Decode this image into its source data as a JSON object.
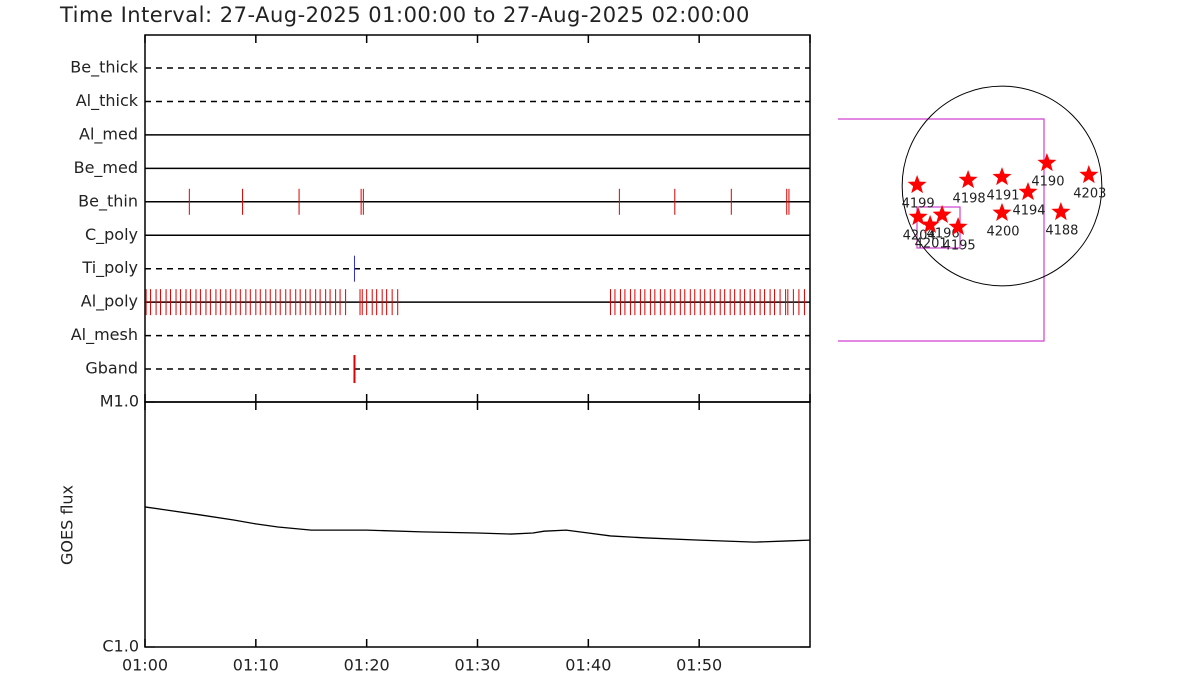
{
  "title": "Time Interval: 27-Aug-2025 01:00:00 to 27-Aug-2025 02:00:00",
  "chart_data": [
    {
      "type": "timeline",
      "categories": [
        "Be_thick",
        "Al_thick",
        "Al_med",
        "Be_med",
        "Be_thin",
        "C_poly",
        "Ti_poly",
        "Al_poly",
        "Al_mesh",
        "Gband"
      ],
      "line_styles": [
        "dashed",
        "dashed",
        "solid",
        "solid",
        "solid",
        "solid",
        "dashed",
        "solid",
        "dashed",
        "dashed"
      ],
      "events": [
        [],
        [],
        [],
        [],
        [
          4.0,
          8.8,
          13.9,
          19.5,
          19.7,
          42.8,
          47.8,
          52.9,
          57.9,
          58.1
        ],
        [],
        [
          18.9
        ],
        [
          0.1,
          0.5,
          1.0,
          1.4,
          1.9,
          2.3,
          2.8,
          3.2,
          3.7,
          4.1,
          4.6,
          5.0,
          5.5,
          5.9,
          6.4,
          6.8,
          7.3,
          7.7,
          8.2,
          8.6,
          9.1,
          9.5,
          10.0,
          10.4,
          10.9,
          11.3,
          11.8,
          12.2,
          12.7,
          13.1,
          13.6,
          14.0,
          14.5,
          14.9,
          15.4,
          15.8,
          16.3,
          16.7,
          17.2,
          17.6,
          18.1,
          19.4,
          19.6,
          20.0,
          20.5,
          20.9,
          21.4,
          21.8,
          22.3,
          22.8,
          42.0,
          42.4,
          42.9,
          43.3,
          43.8,
          44.2,
          44.7,
          45.1,
          45.6,
          46.0,
          46.5,
          46.9,
          47.4,
          47.8,
          48.3,
          48.7,
          49.2,
          49.6,
          50.1,
          50.5,
          51.0,
          51.4,
          51.9,
          52.3,
          52.8,
          53.2,
          53.7,
          54.1,
          54.6,
          55.0,
          55.5,
          55.9,
          56.4,
          56.8,
          57.3,
          57.8,
          58.0,
          58.5,
          59.0,
          59.5
        ],
        [],
        [
          18.9
        ]
      ],
      "event_colors": [
        "#e00000",
        "#e00000",
        "#e00000",
        "#e00000",
        "#e00000",
        "#e00000",
        "#3030c0",
        "#e00000",
        "#e00000",
        "#e00000"
      ],
      "xlim": [
        0,
        60
      ],
      "xticks": [
        0,
        10,
        20,
        30,
        40,
        50,
        60
      ]
    },
    {
      "type": "line",
      "y_label": "GOES flux",
      "x": [
        0,
        2,
        5,
        8,
        10,
        12,
        15,
        20,
        25,
        30,
        33,
        35,
        36,
        38,
        40,
        42,
        45,
        50,
        55,
        58,
        60
      ],
      "values": [
        3.73e-06,
        3.62e-06,
        3.46e-06,
        3.3e-06,
        3.18e-06,
        3.09e-06,
        3e-06,
        3e-06,
        2.95e-06,
        2.92e-06,
        2.89e-06,
        2.92e-06,
        2.97e-06,
        3e-06,
        2.92e-06,
        2.84e-06,
        2.79e-06,
        2.73e-06,
        2.68e-06,
        2.71e-06,
        2.73e-06
      ],
      "color": "#000000",
      "xlim": [
        0,
        60
      ],
      "xticks": [
        {
          "value": 0,
          "label": "01:00"
        },
        {
          "value": 10,
          "label": "01:10"
        },
        {
          "value": 20,
          "label": "01:20"
        },
        {
          "value": 30,
          "label": "01:30"
        },
        {
          "value": 40,
          "label": "01:40"
        },
        {
          "value": 50,
          "label": "01:50"
        }
      ],
      "ylim": [
        1e-06,
        1e-05
      ],
      "yticks": [
        {
          "value": 1e-06,
          "label": "C1.0"
        },
        {
          "value": 1e-05,
          "label": "M1.0"
        }
      ],
      "log_scale": true
    },
    {
      "type": "scatter",
      "marker": "star",
      "color": "#ff0000",
      "solar_radius": 960,
      "xlim": [
        -1000,
        1000
      ],
      "ylim": [
        -1000,
        1000
      ],
      "x": [
        -816,
        -326,
        0,
        432,
        835,
        250,
        0,
        566,
        -806,
        -576,
        -691,
        -422
      ],
      "values": [
        10,
        58,
        86,
        221,
        106,
        -58,
        -259,
        -250,
        -298,
        -278,
        -374,
        -394
      ],
      "labels": [
        "4199",
        "4198",
        "4191",
        "4190",
        "4203",
        "4194",
        "4200",
        "4188",
        "4204",
        "4196",
        "4201",
        "4195"
      ]
    }
  ]
}
